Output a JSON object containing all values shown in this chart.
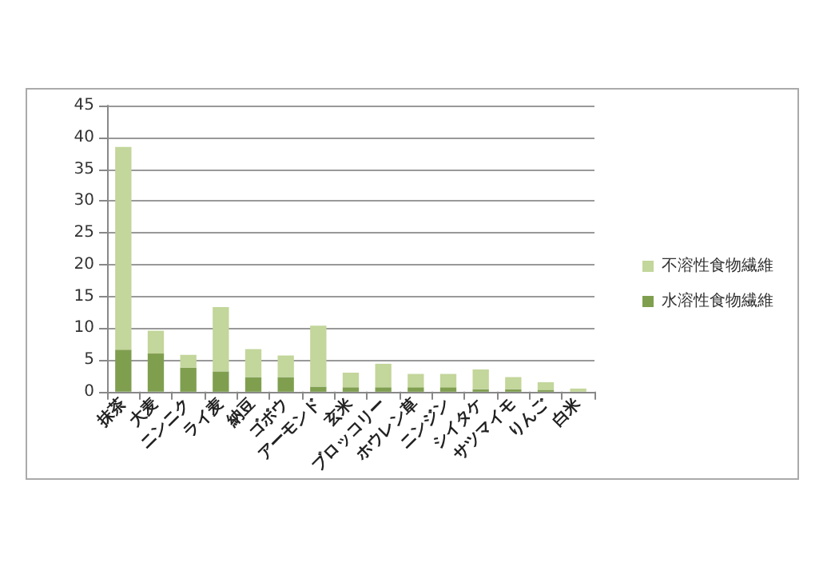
{
  "chart_data": {
    "type": "bar",
    "stacked": true,
    "categories": [
      "抹茶",
      "大麦",
      "ニンニク",
      "ライ麦",
      "納豆",
      "ゴボウ",
      "アーモンド",
      "玄米",
      "ブロッコリー",
      "ホウレン草",
      "ニンジン",
      "シイタケ",
      "サツマイモ",
      "りんご",
      "白米"
    ],
    "series": [
      {
        "name": "水溶性食物繊維",
        "color": "#7f9f4f",
        "values": [
          6.6,
          6.0,
          3.8,
          3.2,
          2.3,
          2.3,
          0.8,
          0.7,
          0.7,
          0.7,
          0.7,
          0.4,
          0.4,
          0.3,
          0
        ]
      },
      {
        "name": "不溶性食物繊維",
        "color": "#c3d69b",
        "values": [
          31.9,
          3.6,
          2.0,
          10.1,
          4.4,
          3.4,
          9.6,
          2.3,
          3.7,
          2.1,
          2.1,
          3.1,
          1.9,
          1.2,
          0.5
        ]
      }
    ],
    "ylim": [
      0,
      45
    ],
    "yticks": [
      0,
      5,
      10,
      15,
      20,
      25,
      30,
      35,
      40,
      45
    ],
    "grid": "y",
    "legend": "right"
  }
}
